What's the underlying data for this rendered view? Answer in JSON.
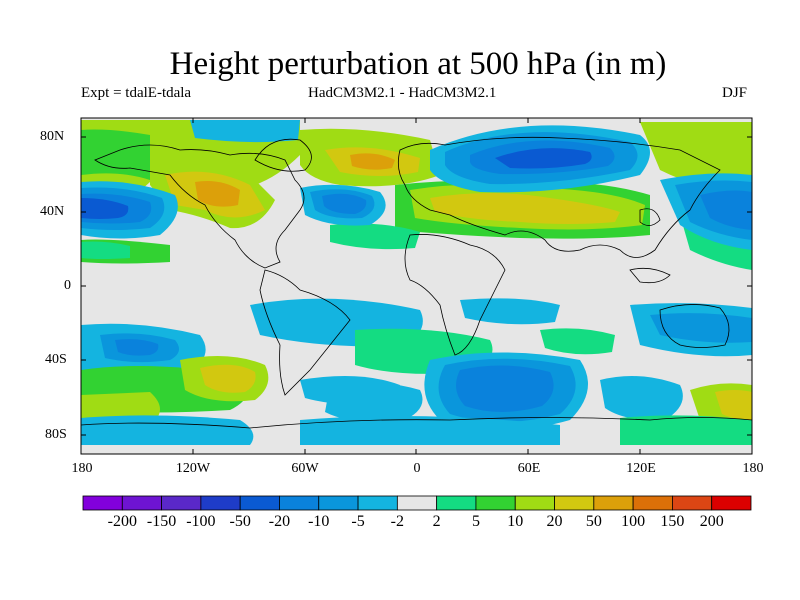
{
  "title": "Height perturbation at 500 hPa (in m)",
  "subtitle_left": "Expt = tdalE-tdala",
  "subtitle_center": "HadCM3M2.1 - HadCM3M2.1",
  "subtitle_right": "DJF",
  "lat_labels": [
    "80N",
    "40N",
    "0",
    "40S",
    "80S"
  ],
  "lon_labels": [
    "180",
    "120W",
    "60W",
    "0",
    "60E",
    "120E",
    "180"
  ],
  "colorbar": {
    "colors": [
      "#8200dc",
      "#6e14d2",
      "#5a28c8",
      "#1e3cc8",
      "#0a5ad2",
      "#0a82dc",
      "#0a96dc",
      "#14b4e0",
      "#e6e6e6",
      "#14dc82",
      "#32d232",
      "#a0dc14",
      "#d2c810",
      "#dca00a",
      "#dc7008",
      "#dc4614",
      "#dc0000"
    ],
    "labels": [
      "-200",
      "-150",
      "-100",
      "-50",
      "-20",
      "-10",
      "-5",
      "-2",
      "2",
      "5",
      "10",
      "20",
      "50",
      "100",
      "150",
      "200"
    ]
  }
}
